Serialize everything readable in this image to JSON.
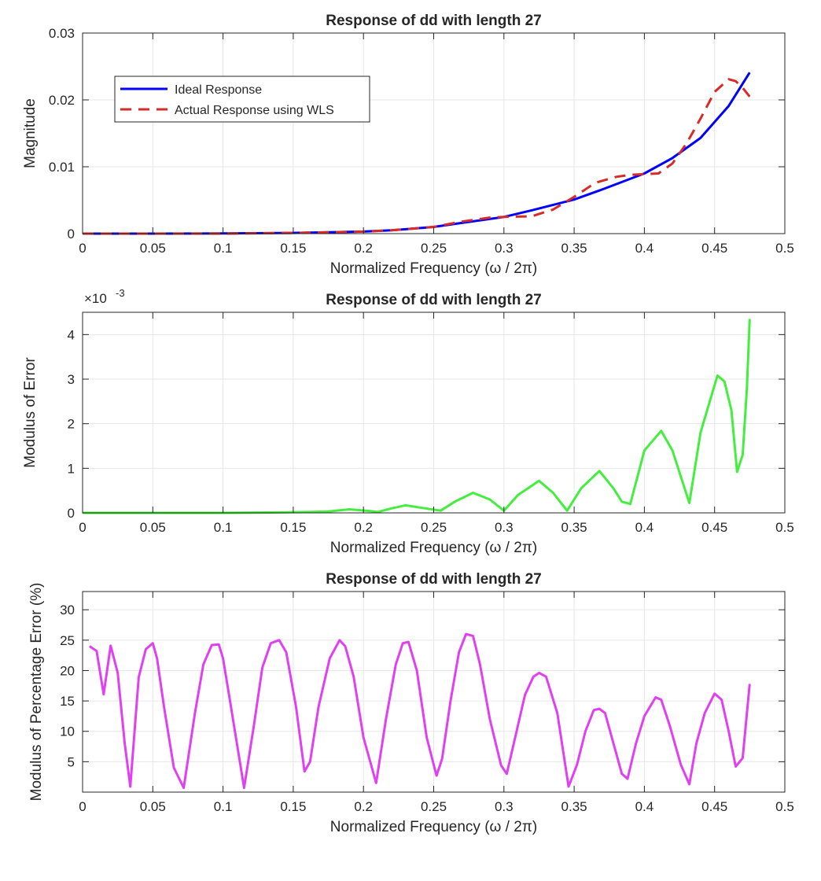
{
  "chart_data": [
    {
      "type": "line",
      "title": "Response of dd with length 27",
      "xlabel": "Normalized Frequency (ω / 2π)",
      "ylabel": "Magnitude",
      "xlim": [
        0,
        0.5
      ],
      "ylim": [
        0,
        0.03
      ],
      "xticks": [
        0,
        0.05,
        0.1,
        0.15,
        0.2,
        0.25,
        0.3,
        0.35,
        0.4,
        0.45,
        0.5
      ],
      "xtick_labels": [
        "0",
        "0.05",
        "0.1",
        "0.15",
        "0.2",
        "0.25",
        "0.3",
        "0.35",
        "0.4",
        "0.45",
        "0.5"
      ],
      "yticks": [
        0,
        0.01,
        0.02,
        0.03
      ],
      "ytick_labels": [
        "0",
        "0.01",
        "0.02",
        "0.03"
      ],
      "grid": true,
      "legend": "upper-left",
      "series": [
        {
          "name": "Ideal Response",
          "color": "#0000ff",
          "style": "solid",
          "x": [
            0,
            0.05,
            0.1,
            0.15,
            0.2,
            0.22,
            0.25,
            0.27,
            0.3,
            0.32,
            0.35,
            0.37,
            0.4,
            0.42,
            0.44,
            0.46,
            0.475
          ],
          "y": [
            0,
            0,
            2e-05,
            0.0001,
            0.0003,
            0.0005,
            0.001,
            0.0016,
            0.0025,
            0.0035,
            0.0051,
            0.0066,
            0.009,
            0.0113,
            0.0143,
            0.0191,
            0.0241
          ]
        },
        {
          "name": "Actual Response using WLS",
          "color": "#d62b28",
          "style": "dashed",
          "x": [
            0,
            0.05,
            0.1,
            0.15,
            0.2,
            0.22,
            0.25,
            0.27,
            0.29,
            0.3,
            0.32,
            0.335,
            0.35,
            0.365,
            0.38,
            0.39,
            0.41,
            0.42,
            0.43,
            0.44,
            0.45,
            0.46,
            0.465,
            0.47,
            0.475
          ],
          "y": [
            0,
            0,
            0,
            0.0001,
            0.0003,
            0.0005,
            0.001,
            0.0018,
            0.0024,
            0.0025,
            0.0026,
            0.0036,
            0.0055,
            0.0076,
            0.0085,
            0.0088,
            0.009,
            0.0105,
            0.0135,
            0.0172,
            0.0212,
            0.0231,
            0.0228,
            0.0218,
            0.0205
          ]
        }
      ]
    },
    {
      "type": "line",
      "title": "Response of dd with length 27",
      "xlabel": "Normalized Frequency (ω / 2π)",
      "ylabel": "Modulus of Error",
      "y_exponent_label": "×10",
      "y_exponent": "-3",
      "xlim": [
        0,
        0.5
      ],
      "ylim": [
        0,
        4.5
      ],
      "xticks": [
        0,
        0.05,
        0.1,
        0.15,
        0.2,
        0.25,
        0.3,
        0.35,
        0.4,
        0.45,
        0.5
      ],
      "xtick_labels": [
        "0",
        "0.05",
        "0.1",
        "0.15",
        "0.2",
        "0.25",
        "0.3",
        "0.35",
        "0.4",
        "0.45",
        "0.5"
      ],
      "yticks": [
        0,
        1,
        2,
        3,
        4
      ],
      "ytick_labels": [
        "0",
        "1",
        "2",
        "3",
        "4"
      ],
      "grid": true,
      "series": [
        {
          "color": "#44ee3e",
          "x": [
            0,
            0.1,
            0.14,
            0.16,
            0.175,
            0.19,
            0.205,
            0.21,
            0.22,
            0.23,
            0.24,
            0.255,
            0.265,
            0.278,
            0.29,
            0.3,
            0.31,
            0.325,
            0.335,
            0.345,
            0.355,
            0.368,
            0.378,
            0.384,
            0.39,
            0.4,
            0.412,
            0.42,
            0.432,
            0.44,
            0.452,
            0.457,
            0.462,
            0.466,
            0.47,
            0.473,
            0.475
          ],
          "y": [
            0,
            0,
            0.01,
            0.02,
            0.03,
            0.08,
            0.04,
            0.02,
            0.1,
            0.17,
            0.12,
            0.05,
            0.25,
            0.45,
            0.3,
            0.05,
            0.4,
            0.72,
            0.45,
            0.05,
            0.55,
            0.94,
            0.55,
            0.25,
            0.2,
            1.4,
            1.84,
            1.4,
            0.22,
            1.8,
            3.08,
            2.95,
            2.3,
            0.92,
            1.3,
            2.8,
            4.35
          ]
        }
      ]
    },
    {
      "type": "line",
      "title": "Response of dd with length 27",
      "xlabel": "Normalized Frequency (ω / 2π)",
      "ylabel": "Modulus of Percentage Error (%)",
      "xlim": [
        0,
        0.5
      ],
      "ylim": [
        0,
        33
      ],
      "xticks": [
        0,
        0.05,
        0.1,
        0.15,
        0.2,
        0.25,
        0.3,
        0.35,
        0.4,
        0.45,
        0.5
      ],
      "xtick_labels": [
        "0",
        "0.05",
        "0.1",
        "0.15",
        "0.2",
        "0.25",
        "0.3",
        "0.35",
        "0.4",
        "0.45",
        "0.5"
      ],
      "yticks": [
        5,
        10,
        15,
        20,
        25,
        30
      ],
      "ytick_labels": [
        "5",
        "10",
        "15",
        "20",
        "25",
        "30"
      ],
      "grid": true,
      "series": [
        {
          "color": "#e040f0",
          "x": [
            0.005,
            0.01,
            0.015,
            0.02,
            0.025,
            0.03,
            0.034,
            0.04,
            0.045,
            0.05,
            0.053,
            0.058,
            0.065,
            0.072,
            0.08,
            0.086,
            0.092,
            0.097,
            0.1,
            0.105,
            0.115,
            0.122,
            0.128,
            0.134,
            0.14,
            0.145,
            0.152,
            0.158,
            0.162,
            0.168,
            0.176,
            0.183,
            0.187,
            0.193,
            0.2,
            0.209,
            0.216,
            0.223,
            0.228,
            0.232,
            0.238,
            0.245,
            0.252,
            0.256,
            0.262,
            0.268,
            0.273,
            0.278,
            0.283,
            0.29,
            0.298,
            0.302,
            0.308,
            0.315,
            0.321,
            0.325,
            0.33,
            0.338,
            0.346,
            0.352,
            0.358,
            0.364,
            0.368,
            0.372,
            0.378,
            0.384,
            0.388,
            0.394,
            0.4,
            0.408,
            0.412,
            0.418,
            0.426,
            0.432,
            0.437,
            0.443,
            0.45,
            0.455,
            0.46,
            0.465,
            0.47,
            0.475
          ],
          "y": [
            24,
            23.2,
            16.1,
            24.1,
            19.6,
            8,
            0.9,
            18.9,
            23.5,
            24.5,
            22,
            14,
            4,
            0.7,
            13,
            21,
            24.2,
            24.3,
            22,
            15,
            0.7,
            11,
            20.5,
            24.5,
            25,
            23,
            14,
            3.4,
            5,
            14,
            22,
            25,
            24,
            19,
            9,
            1.5,
            12,
            21,
            24.5,
            24.7,
            20,
            9,
            2.7,
            5.5,
            15,
            23,
            26,
            25.7,
            21,
            12,
            4.4,
            3,
            9,
            16,
            19,
            19.6,
            19,
            13,
            0.9,
            4.5,
            10,
            13.5,
            13.7,
            13,
            8,
            3,
            2.2,
            8,
            12.5,
            15.6,
            15.2,
            11,
            4.5,
            1.3,
            8,
            13,
            16.2,
            15.2,
            10,
            4.2,
            5.6,
            17.8
          ]
        }
      ]
    }
  ]
}
